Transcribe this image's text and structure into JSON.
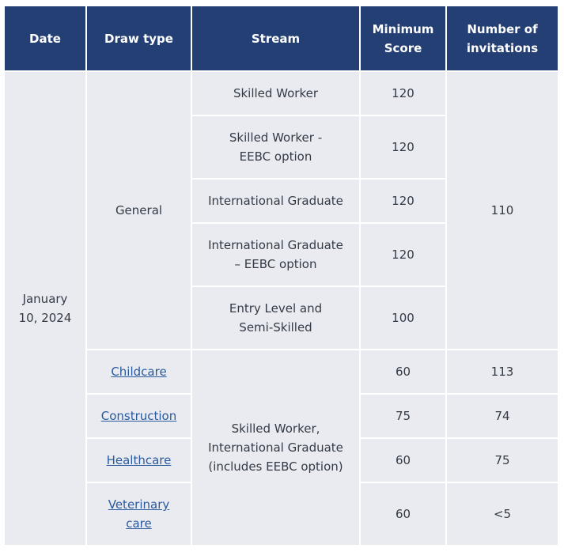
{
  "headers": {
    "date": "Date",
    "draw_type": "Draw type",
    "stream": "Stream",
    "min_score": "Minimum Score",
    "invitations": "Number of invitations"
  },
  "date": "January 10, 2024",
  "general": {
    "draw_type": "General",
    "invitations": "110",
    "rows": [
      {
        "stream": "Skilled Worker",
        "score": "120"
      },
      {
        "stream": "Skilled Worker - EEBC option",
        "score": "120"
      },
      {
        "stream": "International Graduate",
        "score": "120"
      },
      {
        "stream": "International Graduate – EEBC option",
        "score": "120"
      },
      {
        "stream": "Entry Level and Semi-Skilled",
        "score": "100"
      }
    ]
  },
  "targeted_stream": "Skilled Worker, International Graduate (includes EEBC option)",
  "targeted": [
    {
      "draw_type": "Childcare",
      "score": "60",
      "invitations": "113"
    },
    {
      "draw_type": "Construction",
      "score": "75",
      "invitations": "74"
    },
    {
      "draw_type": "Healthcare",
      "score": "60",
      "invitations": "75"
    },
    {
      "draw_type": "Veterinary care",
      "score": "60",
      "invitations": "<5"
    }
  ],
  "colors": {
    "header_bg": "#243f73",
    "cell_bg": "#e9ebf0",
    "link": "#2a5a9e"
  }
}
